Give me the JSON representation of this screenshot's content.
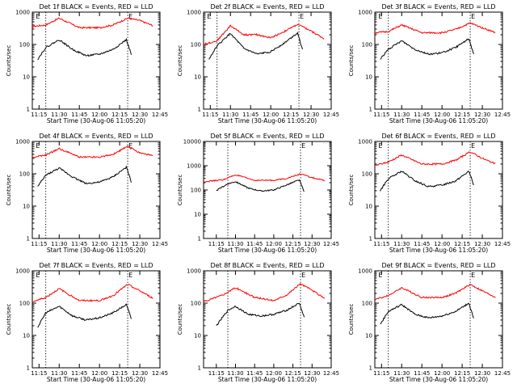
{
  "figure": {
    "background": "#ffffff",
    "axis_color": "#000000"
  },
  "chart_data": [
    {
      "type": "line",
      "title": "Det 1f BLACK = Events, RED = LLD",
      "xlabel": "Start Time (30-Aug-06 11:05:20)",
      "ylabel": "Counts/sec",
      "yscale": "log",
      "ylim": [
        1,
        1000
      ],
      "xlim": [
        "11:10",
        "12:45"
      ],
      "x_ticks": [
        "11:15",
        "11:30",
        "11:45",
        "12:00",
        "12:15",
        "12:30",
        "12:45"
      ],
      "y_ticks": [
        "1",
        "10",
        "100",
        "1000"
      ],
      "markers": [
        {
          "label": "E",
          "time": "11:12"
        },
        {
          "label": "E",
          "time": "12:21"
        }
      ],
      "dotted_lines": [
        "11:20",
        "12:21"
      ],
      "series": [
        {
          "color": "#ff0000",
          "x": [
            "11:10",
            "11:20",
            "11:30",
            "11:45",
            "12:00",
            "12:10",
            "12:21",
            "12:30",
            "12:40"
          ],
          "y": [
            360,
            400,
            650,
            330,
            330,
            400,
            650,
            550,
            380
          ]
        },
        {
          "color": "#000000",
          "x": [
            "11:14",
            "11:20",
            "11:30",
            "11:40",
            "11:50",
            "12:00",
            "12:10",
            "12:20",
            "12:24"
          ],
          "y": [
            35,
            80,
            140,
            70,
            45,
            50,
            70,
            140,
            45
          ]
        }
      ]
    },
    {
      "type": "line",
      "title": "Det 2f BLACK = Events, RED = LLD",
      "xlabel": "Start Time (30-Aug-06 11:05:20)",
      "ylabel": "Counts/sec",
      "yscale": "log",
      "ylim": [
        1,
        1000
      ],
      "xlim": [
        "11:10",
        "12:45"
      ],
      "x_ticks": [
        "11:15",
        "11:30",
        "11:45",
        "12:00",
        "12:15",
        "12:30",
        "12:45"
      ],
      "y_ticks": [
        "1",
        "10",
        "100",
        "1000"
      ],
      "markers": [
        {
          "label": "E",
          "time": "11:12"
        },
        {
          "label": "E",
          "time": "12:21"
        }
      ],
      "dotted_lines": [
        "11:20",
        "12:21"
      ],
      "series": [
        {
          "color": "#ff0000",
          "x": [
            "11:10",
            "11:20",
            "11:30",
            "11:40",
            "11:50",
            "12:00",
            "12:10",
            "12:20",
            "12:30",
            "12:40"
          ],
          "y": [
            100,
            130,
            380,
            200,
            200,
            160,
            250,
            420,
            260,
            150
          ]
        },
        {
          "color": "#000000",
          "x": [
            "11:14",
            "11:20",
            "11:30",
            "11:40",
            "11:50",
            "12:00",
            "12:10",
            "12:20",
            "12:24"
          ],
          "y": [
            35,
            90,
            220,
            75,
            50,
            60,
            110,
            230,
            60
          ]
        }
      ]
    },
    {
      "type": "line",
      "title": "Det 3f BLACK = Events, RED = LLD",
      "xlabel": "Start Time (30-Aug-06 11:05:20)",
      "ylabel": "Counts/sec",
      "yscale": "log",
      "ylim": [
        1,
        1000
      ],
      "xlim": [
        "11:10",
        "12:45"
      ],
      "x_ticks": [
        "11:15",
        "11:30",
        "11:45",
        "12:00",
        "12:15",
        "12:30",
        "12:45"
      ],
      "y_ticks": [
        "1",
        "10",
        "100",
        "1000"
      ],
      "markers": [
        {
          "label": "E",
          "time": "11:12"
        },
        {
          "label": "E",
          "time": "12:21"
        }
      ],
      "dotted_lines": [
        "11:20",
        "12:21"
      ],
      "series": [
        {
          "color": "#ff0000",
          "x": [
            "11:10",
            "11:20",
            "11:30",
            "11:45",
            "12:00",
            "12:10",
            "12:21",
            "12:30",
            "12:40"
          ],
          "y": [
            230,
            250,
            400,
            230,
            230,
            290,
            460,
            330,
            230
          ]
        },
        {
          "color": "#000000",
          "x": [
            "11:14",
            "11:20",
            "11:30",
            "11:40",
            "11:50",
            "12:00",
            "12:10",
            "12:20",
            "12:24"
          ],
          "y": [
            35,
            70,
            130,
            70,
            50,
            55,
            80,
            150,
            45
          ]
        }
      ]
    },
    {
      "type": "line",
      "title": "Det 4f BLACK = Events, RED = LLD",
      "xlabel": "Start Time (30-Aug-06 11:05:20)",
      "ylabel": "Counts/sec",
      "yscale": "log",
      "ylim": [
        1,
        1000
      ],
      "xlim": [
        "11:10",
        "12:45"
      ],
      "x_ticks": [
        "11:15",
        "11:30",
        "11:45",
        "12:00",
        "12:15",
        "12:30",
        "12:45"
      ],
      "y_ticks": [
        "1",
        "10",
        "100",
        "1000"
      ],
      "markers": [
        {
          "label": "E",
          "time": "11:12"
        },
        {
          "label": "E",
          "time": "12:21"
        }
      ],
      "dotted_lines": [
        "11:20",
        "12:21"
      ],
      "series": [
        {
          "color": "#ff0000",
          "x": [
            "11:10",
            "11:20",
            "11:30",
            "11:45",
            "12:00",
            "12:10",
            "12:21",
            "12:30",
            "12:40"
          ],
          "y": [
            320,
            380,
            600,
            330,
            330,
            400,
            700,
            450,
            360
          ]
        },
        {
          "color": "#000000",
          "x": [
            "11:14",
            "11:20",
            "11:30",
            "11:40",
            "11:50",
            "12:00",
            "12:10",
            "12:20",
            "12:24"
          ],
          "y": [
            40,
            90,
            150,
            80,
            50,
            55,
            80,
            160,
            50
          ]
        }
      ]
    },
    {
      "type": "line",
      "title": "Det 5f BLACK = Events, RED = LLD",
      "xlabel": "Start Time (30-Aug-06 11:05:20)",
      "ylabel": "Counts/sec",
      "yscale": "log",
      "ylim": [
        1,
        10000
      ],
      "xlim": [
        "11:05",
        "12:45"
      ],
      "x_ticks": [
        "11:15",
        "11:30",
        "11:45",
        "12:00",
        "12:15",
        "12:30",
        "12:45"
      ],
      "y_ticks": [
        "1",
        "10",
        "100",
        "1000",
        "10000"
      ],
      "markers": [
        {
          "label": "E",
          "time": "12:21"
        }
      ],
      "dotted_lines": [
        "11:24",
        "12:21"
      ],
      "series": [
        {
          "color": "#ff0000",
          "x": [
            "11:05",
            "11:20",
            "11:30",
            "11:45",
            "12:00",
            "12:10",
            "12:21",
            "12:30",
            "12:40"
          ],
          "y": [
            220,
            260,
            420,
            250,
            250,
            300,
            460,
            320,
            240
          ]
        },
        {
          "color": "#000000",
          "x": [
            "11:15",
            "11:24",
            "11:30",
            "11:40",
            "11:50",
            "12:00",
            "12:10",
            "12:20",
            "12:24"
          ],
          "y": [
            95,
            180,
            220,
            120,
            90,
            100,
            160,
            260,
            80
          ]
        }
      ]
    },
    {
      "type": "line",
      "title": "Det 6f BLACK = Events, RED = LLD",
      "xlabel": "Start Time (30-Aug-06 11:05:20)",
      "ylabel": "Counts/sec",
      "yscale": "log",
      "ylim": [
        1,
        1000
      ],
      "xlim": [
        "11:10",
        "12:45"
      ],
      "x_ticks": [
        "11:15",
        "11:30",
        "11:45",
        "12:00",
        "12:15",
        "12:30",
        "12:45"
      ],
      "y_ticks": [
        "1",
        "10",
        "100",
        "1000"
      ],
      "markers": [
        {
          "label": "E",
          "time": "11:12"
        },
        {
          "label": "E",
          "time": "12:21"
        }
      ],
      "dotted_lines": [
        "11:20",
        "12:21"
      ],
      "series": [
        {
          "color": "#ff0000",
          "x": [
            "11:10",
            "11:20",
            "11:30",
            "11:45",
            "12:00",
            "12:10",
            "12:21",
            "12:30",
            "12:40"
          ],
          "y": [
            180,
            230,
            380,
            200,
            200,
            260,
            480,
            300,
            200
          ]
        },
        {
          "color": "#000000",
          "x": [
            "11:14",
            "11:20",
            "11:30",
            "11:40",
            "11:50",
            "12:00",
            "12:10",
            "12:20",
            "12:24"
          ],
          "y": [
            30,
            70,
            120,
            60,
            40,
            45,
            60,
            120,
            40
          ]
        }
      ]
    },
    {
      "type": "line",
      "title": "Det 7f BLACK = Events, RED = LLD",
      "xlabel": "Start Time (30-Aug-06 11:05:20)",
      "ylabel": "Counts/sec",
      "yscale": "log",
      "ylim": [
        1,
        1000
      ],
      "xlim": [
        "11:10",
        "12:45"
      ],
      "x_ticks": [
        "11:15",
        "11:30",
        "11:45",
        "12:00",
        "12:15",
        "12:30",
        "12:45"
      ],
      "y_ticks": [
        "1",
        "10",
        "100",
        "1000"
      ],
      "markers": [
        {
          "label": "E",
          "time": "11:12"
        },
        {
          "label": "E",
          "time": "12:21"
        }
      ],
      "dotted_lines": [
        "11:20",
        "12:21"
      ],
      "series": [
        {
          "color": "#ff0000",
          "x": [
            "11:10",
            "11:20",
            "11:30",
            "11:45",
            "12:00",
            "12:10",
            "12:21",
            "12:30",
            "12:40"
          ],
          "y": [
            110,
            150,
            280,
            120,
            120,
            170,
            380,
            240,
            140
          ]
        },
        {
          "color": "#000000",
          "x": [
            "11:14",
            "11:20",
            "11:30",
            "11:40",
            "11:50",
            "12:00",
            "12:10",
            "12:20",
            "12:24"
          ],
          "y": [
            18,
            50,
            80,
            40,
            30,
            35,
            50,
            90,
            30
          ]
        }
      ]
    },
    {
      "type": "line",
      "title": "Det 8f BLACK = Events, RED = LLD",
      "xlabel": "Start Time (30-Aug-06 11:05:20)",
      "ylabel": "Counts/sec",
      "yscale": "log",
      "ylim": [
        1,
        1000
      ],
      "xlim": [
        "11:05",
        "12:45"
      ],
      "x_ticks": [
        "11:15",
        "11:30",
        "11:45",
        "12:00",
        "12:15",
        "12:30",
        "12:45"
      ],
      "y_ticks": [
        "1",
        "10",
        "100",
        "1000"
      ],
      "markers": [
        {
          "label": "E",
          "time": "12:21"
        }
      ],
      "dotted_lines": [
        "11:24",
        "12:21"
      ],
      "series": [
        {
          "color": "#ff0000",
          "x": [
            "11:05",
            "11:20",
            "11:30",
            "11:45",
            "12:00",
            "12:10",
            "12:21",
            "12:30",
            "12:40"
          ],
          "y": [
            110,
            180,
            300,
            150,
            120,
            180,
            400,
            250,
            140
          ]
        },
        {
          "color": "#000000",
          "x": [
            "11:15",
            "11:24",
            "11:30",
            "11:40",
            "11:50",
            "12:00",
            "12:10",
            "12:20",
            "12:24"
          ],
          "y": [
            20,
            60,
            80,
            45,
            40,
            45,
            60,
            100,
            35
          ]
        }
      ]
    },
    {
      "type": "line",
      "title": "Det 9f BLACK = Events, RED = LLD",
      "xlabel": "Start Time (30-Aug-06 11:05:20)",
      "ylabel": "Counts/sec",
      "yscale": "log",
      "ylim": [
        1,
        1000
      ],
      "xlim": [
        "11:10",
        "12:45"
      ],
      "x_ticks": [
        "11:15",
        "11:30",
        "11:45",
        "12:00",
        "12:15",
        "12:30",
        "12:45"
      ],
      "y_ticks": [
        "1",
        "10",
        "100",
        "1000"
      ],
      "markers": [
        {
          "label": "E",
          "time": "11:12"
        },
        {
          "label": "E",
          "time": "12:21"
        }
      ],
      "dotted_lines": [
        "11:20",
        "12:21"
      ],
      "series": [
        {
          "color": "#ff0000",
          "x": [
            "11:10",
            "11:20",
            "11:30",
            "11:45",
            "12:00",
            "12:10",
            "12:21",
            "12:30",
            "12:40"
          ],
          "y": [
            130,
            170,
            300,
            150,
            150,
            200,
            380,
            240,
            150
          ]
        },
        {
          "color": "#000000",
          "x": [
            "11:14",
            "11:20",
            "11:30",
            "11:40",
            "11:50",
            "12:00",
            "12:10",
            "12:20",
            "12:24"
          ],
          "y": [
            22,
            55,
            90,
            45,
            35,
            40,
            55,
            100,
            30
          ]
        }
      ]
    }
  ]
}
